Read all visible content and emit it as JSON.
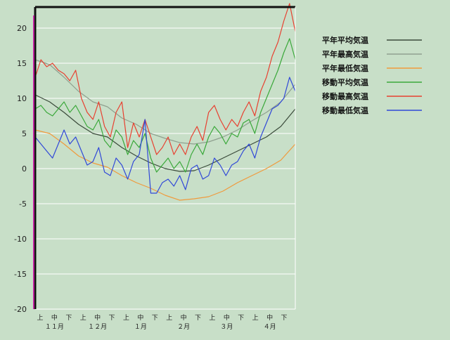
{
  "chart_data": {
    "type": "line",
    "title": "",
    "xlabel": "",
    "ylabel": "",
    "ylim": [
      -20,
      23
    ],
    "yticks": [
      20,
      15,
      10,
      5,
      0,
      -5,
      -10,
      -15,
      -20
    ],
    "grid": true,
    "legend_position": "right",
    "x_dekad_labels": [
      "上",
      "中",
      "下",
      "上",
      "中",
      "下",
      "上",
      "中",
      "下",
      "上",
      "中",
      "下",
      "上",
      "中",
      "下",
      "上",
      "中",
      "下"
    ],
    "x_month_labels": [
      "１１月",
      "１２月",
      "１月",
      "２月",
      "３月",
      "４月"
    ],
    "x_range": [
      0,
      180
    ],
    "series": [
      {
        "name": "平年平均気温",
        "color": "#3a4a3a",
        "x": [
          0,
          10,
          20,
          30,
          40,
          50,
          60,
          70,
          80,
          90,
          100,
          110,
          120,
          130,
          140,
          150,
          160,
          170,
          180
        ],
        "y": [
          10.5,
          9.5,
          8.0,
          6.3,
          5.0,
          4.5,
          3.0,
          1.8,
          0.8,
          0.0,
          -0.4,
          -0.3,
          0.5,
          1.5,
          2.5,
          3.5,
          4.5,
          6.0,
          8.5
        ]
      },
      {
        "name": "平年最高気温",
        "color": "#8fa08f",
        "x": [
          0,
          10,
          20,
          30,
          40,
          50,
          60,
          70,
          80,
          90,
          100,
          110,
          120,
          130,
          140,
          150,
          160,
          170,
          180
        ],
        "y": [
          15.5,
          14.8,
          13.0,
          11.0,
          9.5,
          8.8,
          7.2,
          6.3,
          5.0,
          4.3,
          3.7,
          3.5,
          3.8,
          4.5,
          5.5,
          6.8,
          8.0,
          9.5,
          12.0
        ]
      },
      {
        "name": "平年最低気温",
        "color": "#f09a3c",
        "x": [
          0,
          10,
          20,
          30,
          40,
          50,
          60,
          70,
          80,
          90,
          100,
          110,
          120,
          130,
          140,
          150,
          160,
          170,
          180
        ],
        "y": [
          5.5,
          5.0,
          3.5,
          1.8,
          0.8,
          0.2,
          -1.0,
          -2.0,
          -2.8,
          -3.8,
          -4.5,
          -4.3,
          -4.0,
          -3.2,
          -2.0,
          -1.0,
          0.0,
          1.2,
          3.5
        ]
      },
      {
        "name": "移動平均気温",
        "color": "#3aa83a",
        "x": [
          0,
          4,
          8,
          12,
          16,
          20,
          24,
          28,
          32,
          36,
          40,
          44,
          48,
          52,
          56,
          60,
          64,
          68,
          72,
          76,
          80,
          84,
          88,
          92,
          96,
          100,
          104,
          108,
          112,
          116,
          120,
          124,
          128,
          132,
          136,
          140,
          144,
          148,
          152,
          156,
          160,
          164,
          168,
          172,
          176,
          180
        ],
        "y": [
          8.5,
          9.0,
          8.0,
          7.5,
          8.5,
          9.5,
          8.0,
          9.0,
          7.5,
          6.0,
          5.5,
          7.0,
          4.0,
          3.0,
          5.5,
          4.5,
          2.0,
          4.0,
          3.0,
          5.0,
          1.5,
          -0.5,
          0.5,
          1.5,
          0.0,
          1.0,
          -0.5,
          2.0,
          3.5,
          2.0,
          4.5,
          6.0,
          5.0,
          3.5,
          5.0,
          4.5,
          6.5,
          7.0,
          5.0,
          8.0,
          10.0,
          12.0,
          14.0,
          16.5,
          18.5,
          15.5
        ]
      },
      {
        "name": "移動最高気温",
        "color": "#e84030",
        "x": [
          0,
          4,
          8,
          12,
          16,
          20,
          24,
          28,
          32,
          36,
          40,
          44,
          48,
          52,
          56,
          60,
          64,
          68,
          72,
          76,
          80,
          84,
          88,
          92,
          96,
          100,
          104,
          108,
          112,
          116,
          120,
          124,
          128,
          132,
          136,
          140,
          144,
          148,
          152,
          156,
          160,
          164,
          168,
          172,
          176,
          180
        ],
        "y": [
          13.0,
          15.5,
          14.5,
          15.0,
          14.0,
          13.5,
          12.5,
          14.0,
          10.0,
          8.0,
          7.0,
          9.5,
          6.0,
          4.5,
          8.0,
          9.5,
          3.0,
          6.5,
          4.5,
          7.0,
          4.5,
          2.0,
          3.0,
          4.5,
          2.0,
          3.5,
          2.0,
          4.5,
          6.0,
          4.0,
          8.0,
          9.0,
          7.0,
          5.5,
          7.0,
          6.0,
          8.0,
          9.5,
          7.5,
          11.0,
          13.0,
          16.0,
          18.0,
          21.0,
          23.5,
          19.5
        ]
      },
      {
        "name": "移動最低気温",
        "color": "#3048d8",
        "x": [
          0,
          4,
          8,
          12,
          16,
          20,
          24,
          28,
          32,
          36,
          40,
          44,
          48,
          52,
          56,
          60,
          64,
          68,
          72,
          76,
          80,
          84,
          88,
          92,
          96,
          100,
          104,
          108,
          112,
          116,
          120,
          124,
          128,
          132,
          136,
          140,
          144,
          148,
          152,
          156,
          160,
          164,
          168,
          172,
          176,
          180
        ],
        "y": [
          4.5,
          3.5,
          2.5,
          1.5,
          3.5,
          5.5,
          3.5,
          4.5,
          2.5,
          0.5,
          1.0,
          3.0,
          -0.5,
          -1.0,
          1.5,
          0.5,
          -1.5,
          1.0,
          2.0,
          7.0,
          -3.5,
          -3.5,
          -2.0,
          -1.5,
          -2.5,
          -1.0,
          -3.0,
          0.0,
          0.5,
          -1.5,
          -1.0,
          1.5,
          0.5,
          -1.0,
          0.5,
          1.0,
          2.5,
          3.5,
          1.5,
          4.5,
          6.5,
          8.5,
          9.0,
          10.0,
          13.0,
          11.0
        ]
      }
    ]
  }
}
